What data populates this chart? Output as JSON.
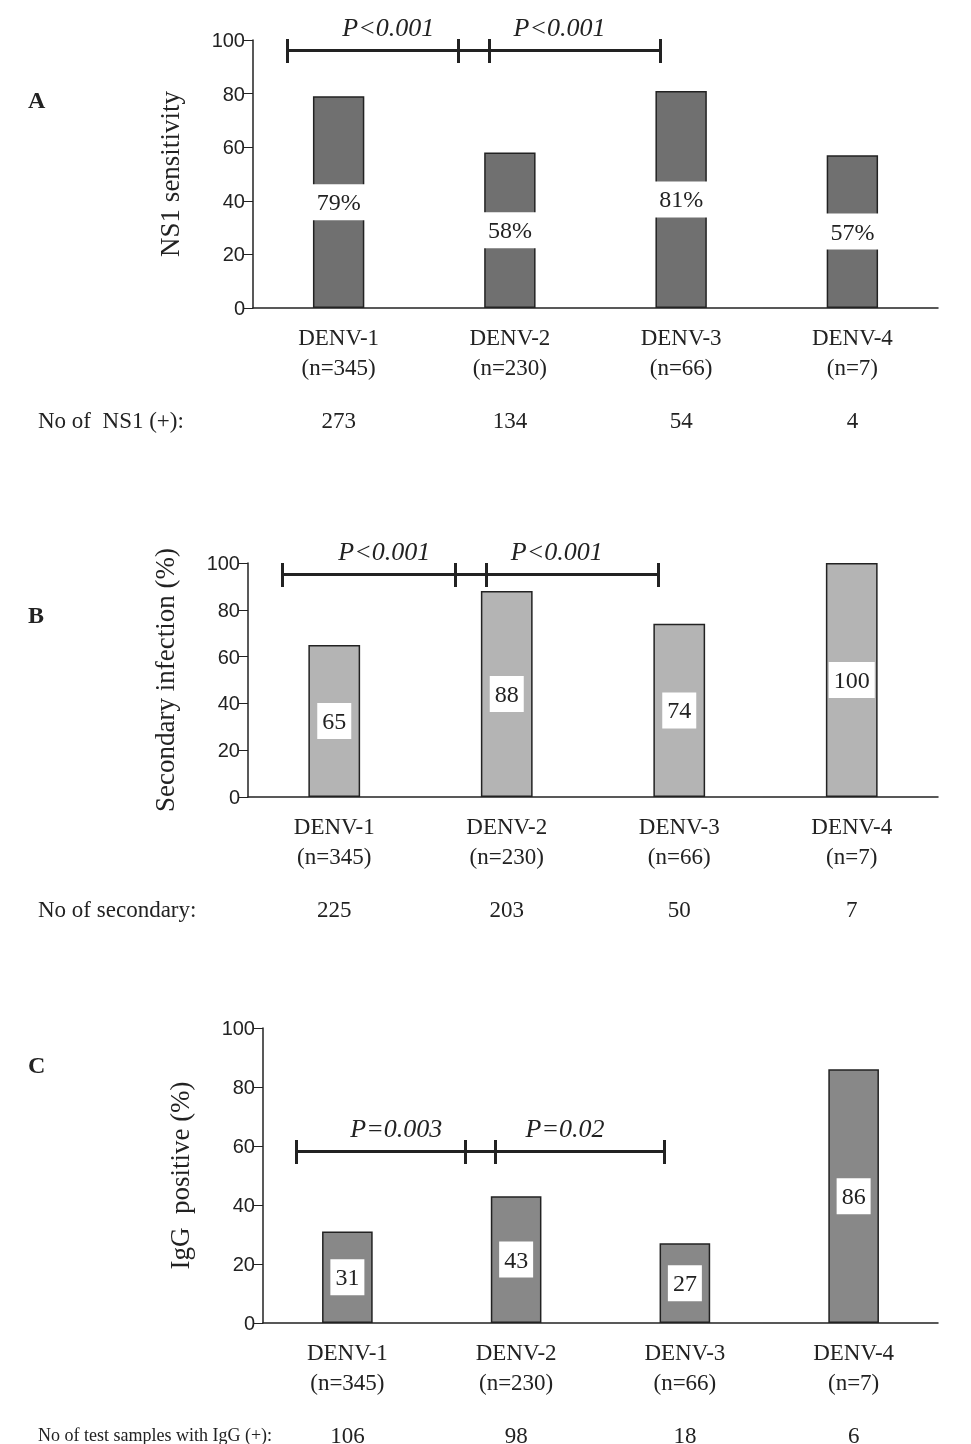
{
  "chart_data": [
    {
      "type": "bar",
      "ylabel": "NS1 sensitivity",
      "categories": [
        "DENV-1\n(n=345)",
        "DENV-2\n(n=230)",
        "DENV-3\n(n=66)",
        "DENV-4\n(n=7)"
      ],
      "values": [
        79,
        58,
        81,
        57
      ],
      "value_labels": [
        "79%",
        "58%",
        "81%",
        "57%"
      ],
      "color": "#707070",
      "ylim": [
        0,
        100
      ],
      "yticks": [
        0,
        20,
        40,
        60,
        80,
        100
      ],
      "grid": false,
      "annotations": [
        "A",
        "P<0.001",
        "P<0.001",
        "No of  NS1 (+):",
        "273",
        "134",
        "54",
        "4"
      ]
    },
    {
      "type": "bar",
      "ylabel": "Secondary infection (%)",
      "categories": [
        "DENV-1\n(n=345)",
        "DENV-2\n(n=230)",
        "DENV-3\n(n=66)",
        "DENV-4\n(n=7)"
      ],
      "values": [
        65,
        88,
        74,
        100
      ],
      "data_labels": true,
      "color": "#b4b4b4",
      "ylim": [
        0,
        100
      ],
      "yticks": [
        0,
        20,
        40,
        60,
        80,
        100
      ],
      "grid": false,
      "annotations": [
        "B",
        "P<0.001",
        "P<0.001",
        "No of secondary:",
        "225",
        "203",
        "50",
        "7"
      ]
    },
    {
      "type": "bar",
      "ylabel": "IgG  positive (%)",
      "categories": [
        "DENV-1\n(n=345)",
        "DENV-2\n(n=230)",
        "DENV-3\n(n=66)",
        "DENV-4\n(n=7)"
      ],
      "values": [
        31,
        43,
        27,
        86
      ],
      "data_labels": true,
      "color": "#888888",
      "ylim": [
        0,
        100
      ],
      "yticks": [
        0,
        20,
        40,
        60,
        80,
        100
      ],
      "grid": false,
      "annotations": [
        "C",
        "P=0.003",
        "P=0.02",
        "No of test samples with IgG (+):",
        "106",
        "98",
        "18",
        "6"
      ]
    }
  ]
}
